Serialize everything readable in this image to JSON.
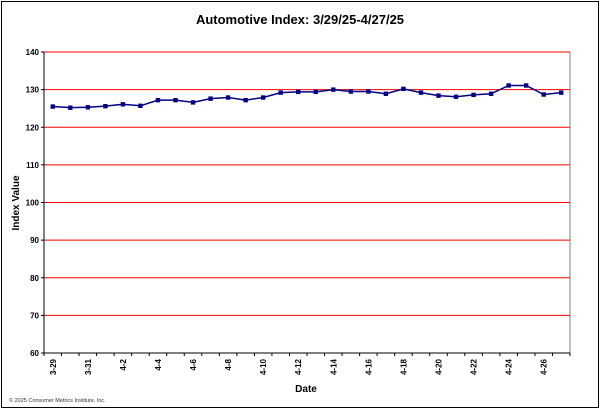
{
  "chart_data": {
    "type": "line",
    "title": "Automotive Index: 3/29/25-4/27/25",
    "xlabel": "Date",
    "ylabel": "Index Value",
    "ylim": [
      60,
      140
    ],
    "yticks": [
      60,
      70,
      80,
      90,
      100,
      110,
      120,
      130,
      140
    ],
    "x": [
      "3-29",
      "3-30",
      "3-31",
      "4-1",
      "4-2",
      "4-3",
      "4-4",
      "4-5",
      "4-6",
      "4-7",
      "4-8",
      "4-9",
      "4-10",
      "4-11",
      "4-12",
      "4-13",
      "4-14",
      "4-15",
      "4-16",
      "4-17",
      "4-18",
      "4-19",
      "4-20",
      "4-21",
      "4-22",
      "4-23",
      "4-24",
      "4-25",
      "4-26",
      "4-27"
    ],
    "xtick_labels": [
      "3-29",
      "3-31",
      "4-2",
      "4-4",
      "4-6",
      "4-8",
      "4-10",
      "4-12",
      "4-14",
      "4-16",
      "4-18",
      "4-20",
      "4-22",
      "4-24",
      "4-26"
    ],
    "series": [
      {
        "values": [
          125.5,
          125.2,
          125.3,
          125.6,
          126.1,
          125.7,
          127.2,
          127.2,
          126.6,
          127.6,
          127.9,
          127.2,
          127.9,
          129.2,
          129.4,
          129.4,
          130.0,
          129.5,
          129.5,
          128.9,
          130.2,
          129.2,
          128.4,
          128.1,
          128.6,
          128.9,
          131.1,
          131.1,
          128.7,
          129.2
        ],
        "color": "#000080"
      }
    ],
    "grid": true,
    "grid_color": "#ff0000",
    "legend": "none"
  },
  "footer": {
    "copyright": "© 2025 Consumer Metrics Institute, Inc."
  }
}
